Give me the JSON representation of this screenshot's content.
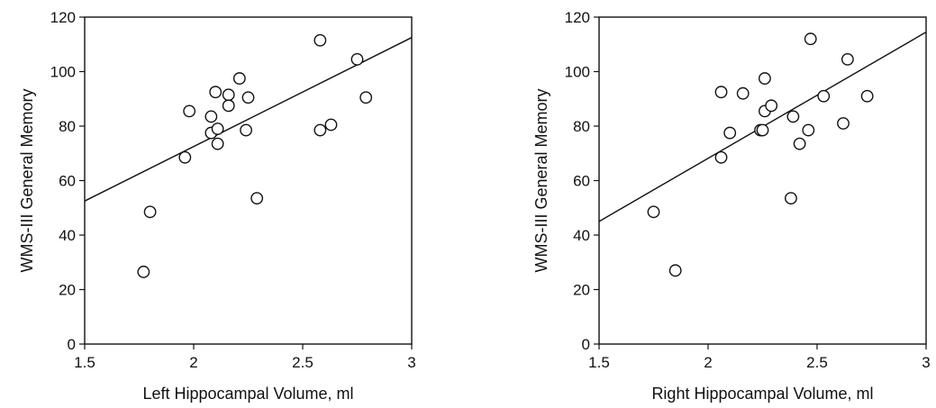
{
  "chart_data": [
    {
      "type": "scatter",
      "title": "",
      "xlabel": "Left Hippocampal Volume, ml",
      "ylabel": "WMS-III General Memory",
      "xlim": [
        1.5,
        3
      ],
      "ylim": [
        0,
        120
      ],
      "xticks": [
        1.5,
        2,
        2.5,
        3
      ],
      "xtick_labels": [
        "1.5",
        "2",
        "2.5",
        "3"
      ],
      "yticks": [
        0,
        20,
        40,
        60,
        80,
        100,
        120
      ],
      "ytick_labels": [
        "0",
        "20",
        "40",
        "60",
        "80",
        "100",
        "120"
      ],
      "grid": false,
      "points": [
        {
          "x": 1.77,
          "y": 26.5
        },
        {
          "x": 1.8,
          "y": 48.5
        },
        {
          "x": 1.96,
          "y": 68.5
        },
        {
          "x": 1.98,
          "y": 85.5
        },
        {
          "x": 2.08,
          "y": 83.5
        },
        {
          "x": 2.08,
          "y": 77.5
        },
        {
          "x": 2.1,
          "y": 92.5
        },
        {
          "x": 2.11,
          "y": 79.0
        },
        {
          "x": 2.11,
          "y": 73.5
        },
        {
          "x": 2.16,
          "y": 91.5
        },
        {
          "x": 2.16,
          "y": 87.5
        },
        {
          "x": 2.21,
          "y": 97.5
        },
        {
          "x": 2.25,
          "y": 90.5
        },
        {
          "x": 2.24,
          "y": 78.5
        },
        {
          "x": 2.29,
          "y": 53.5
        },
        {
          "x": 2.58,
          "y": 111.5
        },
        {
          "x": 2.58,
          "y": 78.5
        },
        {
          "x": 2.63,
          "y": 80.5
        },
        {
          "x": 2.75,
          "y": 104.5
        },
        {
          "x": 2.79,
          "y": 90.5
        }
      ],
      "fit_line": {
        "x": [
          1.5,
          3
        ],
        "y": [
          52.5,
          112.5
        ]
      }
    },
    {
      "type": "scatter",
      "title": "",
      "xlabel": "Right Hippocampal Volume, ml",
      "ylabel": "WMS-III General Memory",
      "xlim": [
        1.5,
        3
      ],
      "ylim": [
        0,
        120
      ],
      "xticks": [
        1.5,
        2,
        2.5,
        3
      ],
      "xtick_labels": [
        "1.5",
        "2",
        "2.5",
        "3"
      ],
      "yticks": [
        0,
        20,
        40,
        60,
        80,
        100,
        120
      ],
      "ytick_labels": [
        "0",
        "20",
        "40",
        "60",
        "80",
        "100",
        "120"
      ],
      "grid": false,
      "points": [
        {
          "x": 1.75,
          "y": 48.5
        },
        {
          "x": 1.85,
          "y": 27.0
        },
        {
          "x": 2.06,
          "y": 68.5
        },
        {
          "x": 2.06,
          "y": 92.5
        },
        {
          "x": 2.1,
          "y": 77.5
        },
        {
          "x": 2.16,
          "y": 92.0
        },
        {
          "x": 2.24,
          "y": 78.5
        },
        {
          "x": 2.25,
          "y": 78.5
        },
        {
          "x": 2.26,
          "y": 97.5
        },
        {
          "x": 2.26,
          "y": 85.5
        },
        {
          "x": 2.29,
          "y": 87.5
        },
        {
          "x": 2.38,
          "y": 53.5
        },
        {
          "x": 2.39,
          "y": 83.5
        },
        {
          "x": 2.42,
          "y": 73.5
        },
        {
          "x": 2.46,
          "y": 78.5
        },
        {
          "x": 2.47,
          "y": 112.0
        },
        {
          "x": 2.53,
          "y": 91.0
        },
        {
          "x": 2.62,
          "y": 81.0
        },
        {
          "x": 2.64,
          "y": 104.5
        },
        {
          "x": 2.73,
          "y": 91.0
        }
      ],
      "fit_line": {
        "x": [
          1.5,
          3
        ],
        "y": [
          45.0,
          114.5
        ]
      }
    }
  ]
}
